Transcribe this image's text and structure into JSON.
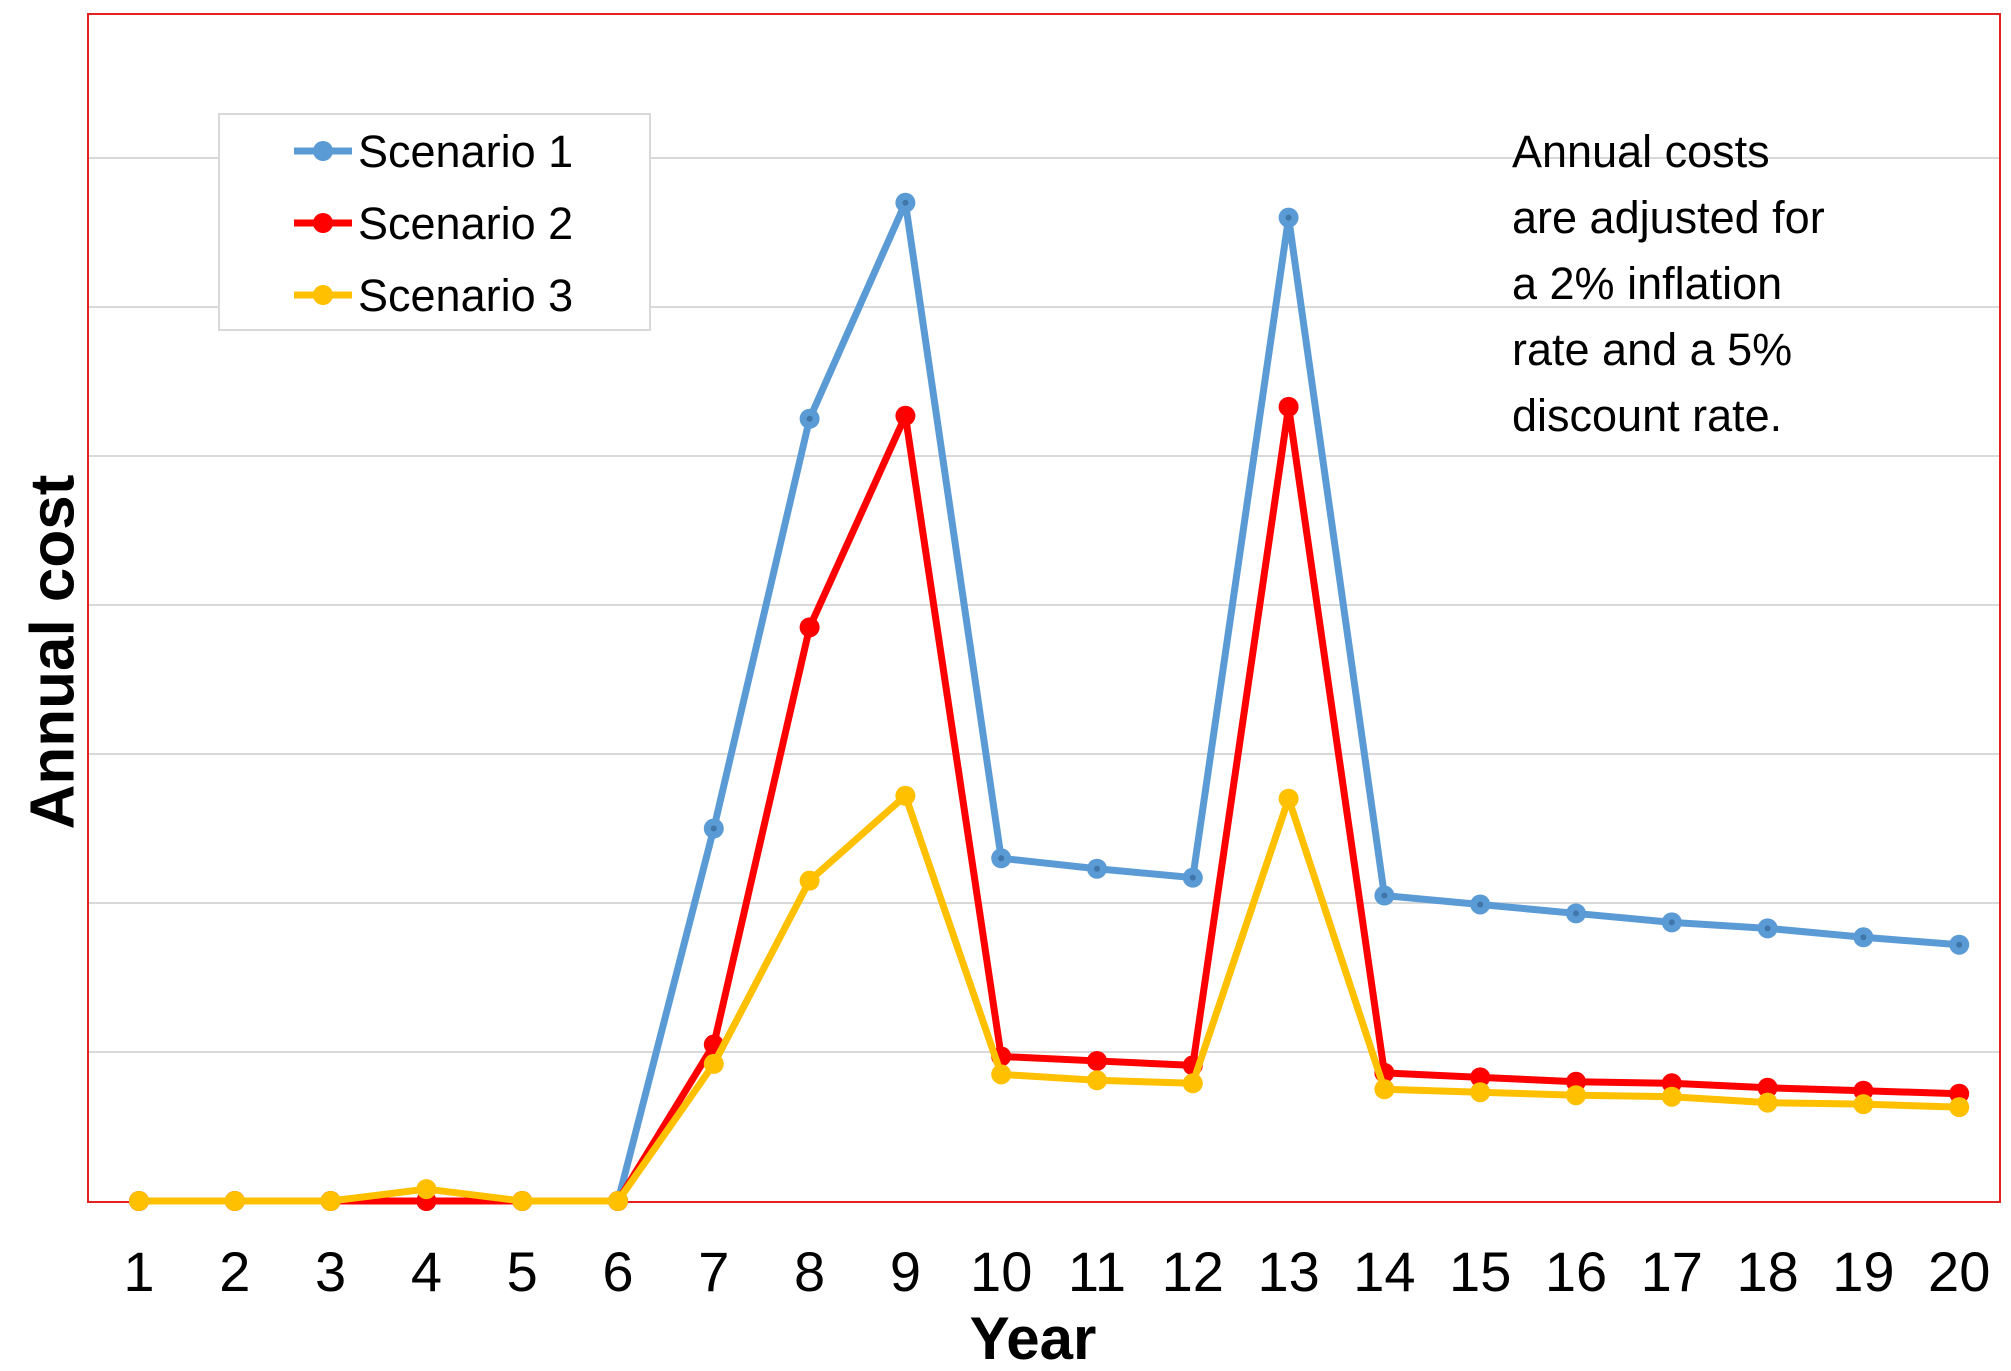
{
  "chart_data": {
    "type": "line",
    "xlabel": "Year",
    "ylabel": "Annual cost",
    "x": [
      1,
      2,
      3,
      4,
      5,
      6,
      7,
      8,
      9,
      10,
      11,
      12,
      13,
      14,
      15,
      16,
      17,
      18,
      19,
      20
    ],
    "ylim": [
      0,
      8
    ],
    "grid": true,
    "y_tick_labels_shown": false,
    "legend_position": "top-left",
    "series": [
      {
        "name": "Scenario 1",
        "color": "#5B9BD5",
        "values": [
          0,
          0,
          0,
          0,
          0,
          0,
          2.5,
          5.25,
          6.7,
          2.3,
          2.23,
          2.17,
          6.6,
          2.05,
          1.99,
          1.93,
          1.87,
          1.83,
          1.77,
          1.72
        ]
      },
      {
        "name": "Scenario 2",
        "color": "#FF0000",
        "values": [
          0,
          0,
          0,
          0,
          0,
          0,
          1.05,
          3.85,
          5.27,
          0.97,
          0.94,
          0.91,
          5.33,
          0.86,
          0.83,
          0.8,
          0.79,
          0.76,
          0.74,
          0.72
        ]
      },
      {
        "name": "Scenario 3",
        "color": "#FFC000",
        "values": [
          0,
          0,
          0,
          0.08,
          0,
          0,
          0.92,
          2.15,
          2.72,
          0.85,
          0.81,
          0.79,
          2.7,
          0.75,
          0.73,
          0.71,
          0.7,
          0.66,
          0.65,
          0.63
        ]
      }
    ],
    "annotation": {
      "lines": [
        "Annual costs",
        "are adjusted for",
        "a 2% inflation",
        "rate and a 5%",
        "discount rate."
      ]
    }
  },
  "colors": {
    "frame": "#E52222",
    "gridline": "#D9D9D9",
    "legend_border": "#D9D9D9"
  }
}
